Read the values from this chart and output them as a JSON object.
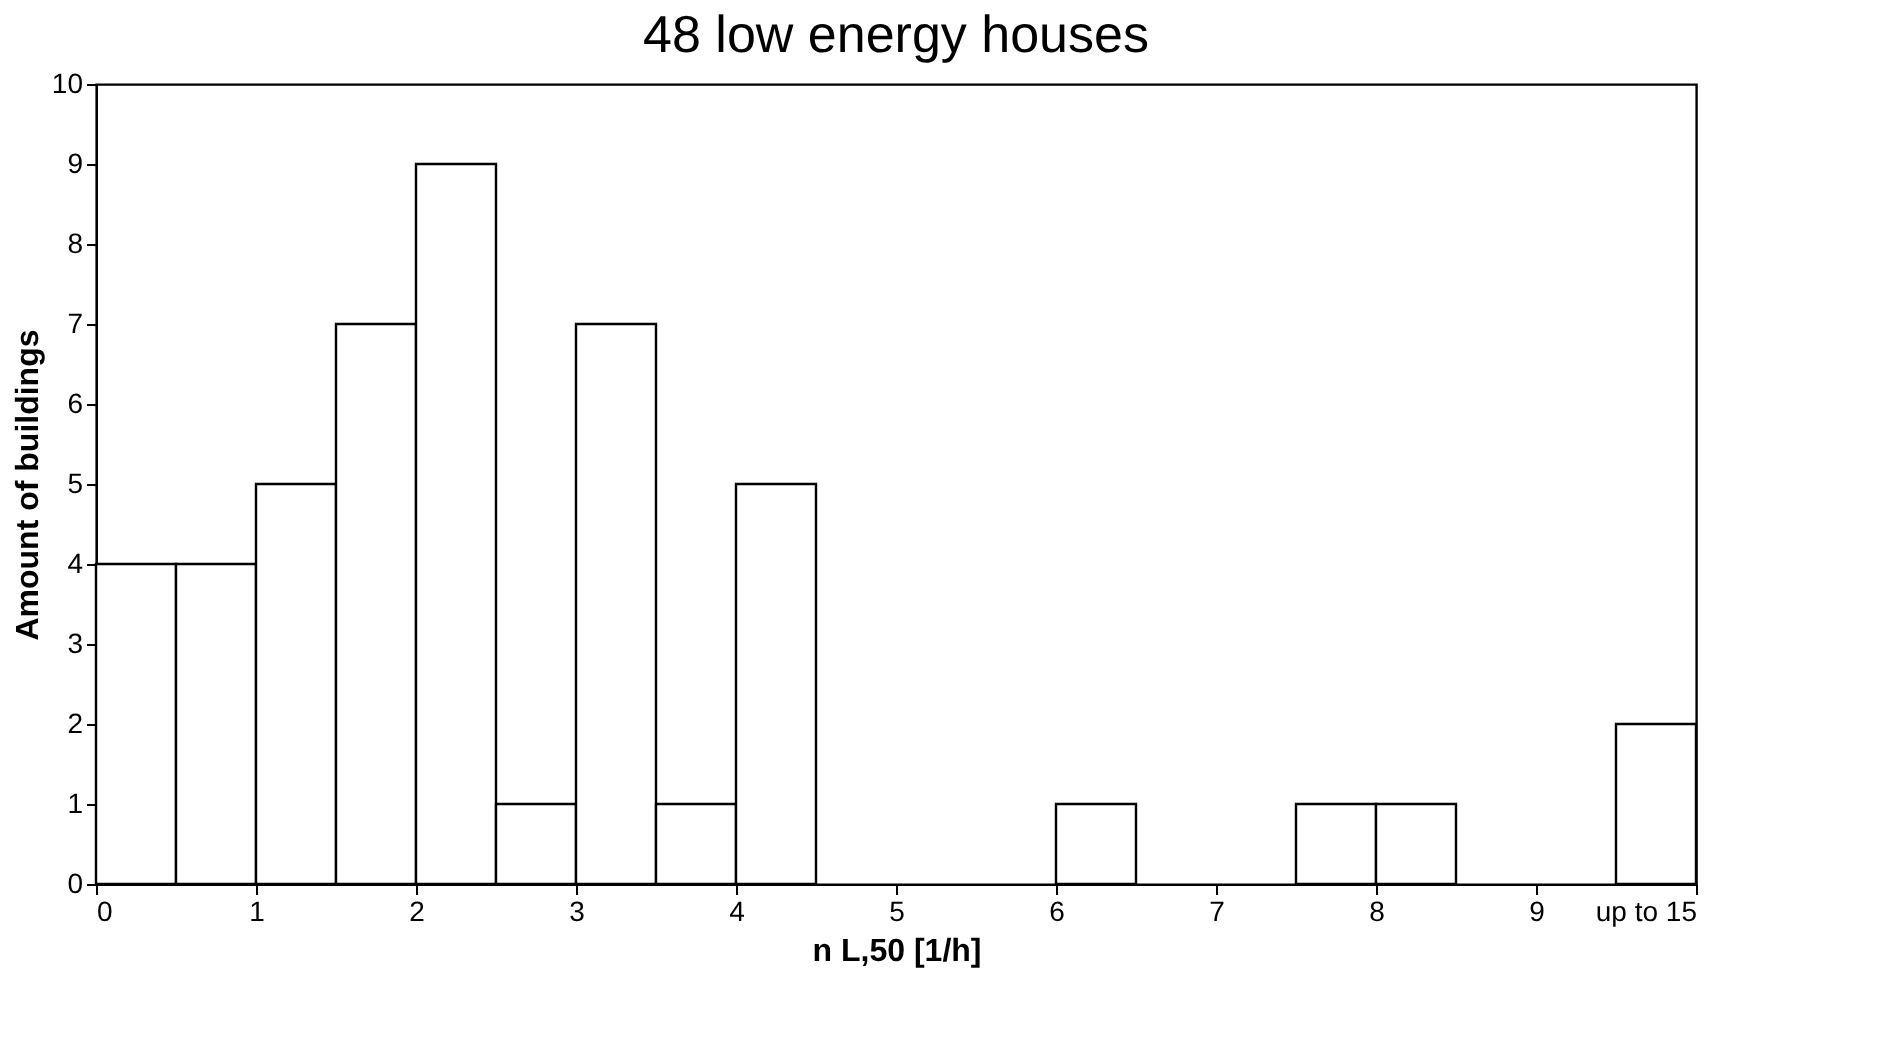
{
  "chart_data": {
    "type": "histogram",
    "title": "48 low energy houses",
    "xlabel": "n L,50 [1/h]",
    "ylabel": "Amount of buildings",
    "bins": [
      0,
      0.5,
      1,
      1.5,
      2,
      2.5,
      3,
      3.5,
      4,
      4.5,
      5,
      5.5,
      6,
      6.5,
      7,
      7.5,
      8,
      8.5,
      9,
      9.5,
      10
    ],
    "values": [
      4,
      4,
      5,
      7,
      9,
      1,
      7,
      1,
      5,
      0,
      0,
      0,
      1,
      0,
      0,
      1,
      1,
      0,
      0,
      2
    ],
    "color": "#ffffff",
    "xlim": [
      0,
      10
    ],
    "xticks": [
      0,
      1,
      2,
      3,
      4,
      5,
      6,
      7,
      8,
      9,
      {
        "value": 10,
        "label": "up to 15"
      }
    ],
    "ylim": [
      0,
      10
    ],
    "yticks": [
      0,
      1,
      2,
      3,
      4,
      5,
      6,
      7,
      8,
      9,
      10
    ],
    "grid": false
  }
}
